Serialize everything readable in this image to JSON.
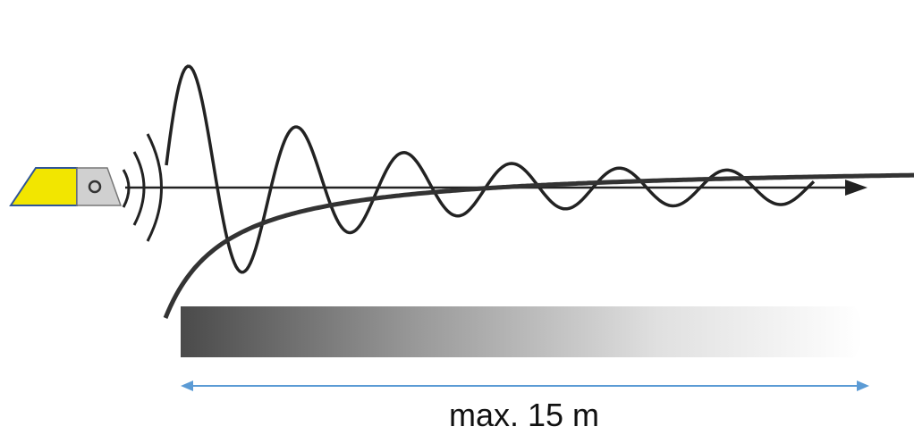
{
  "label": "max. 15 m"
}
